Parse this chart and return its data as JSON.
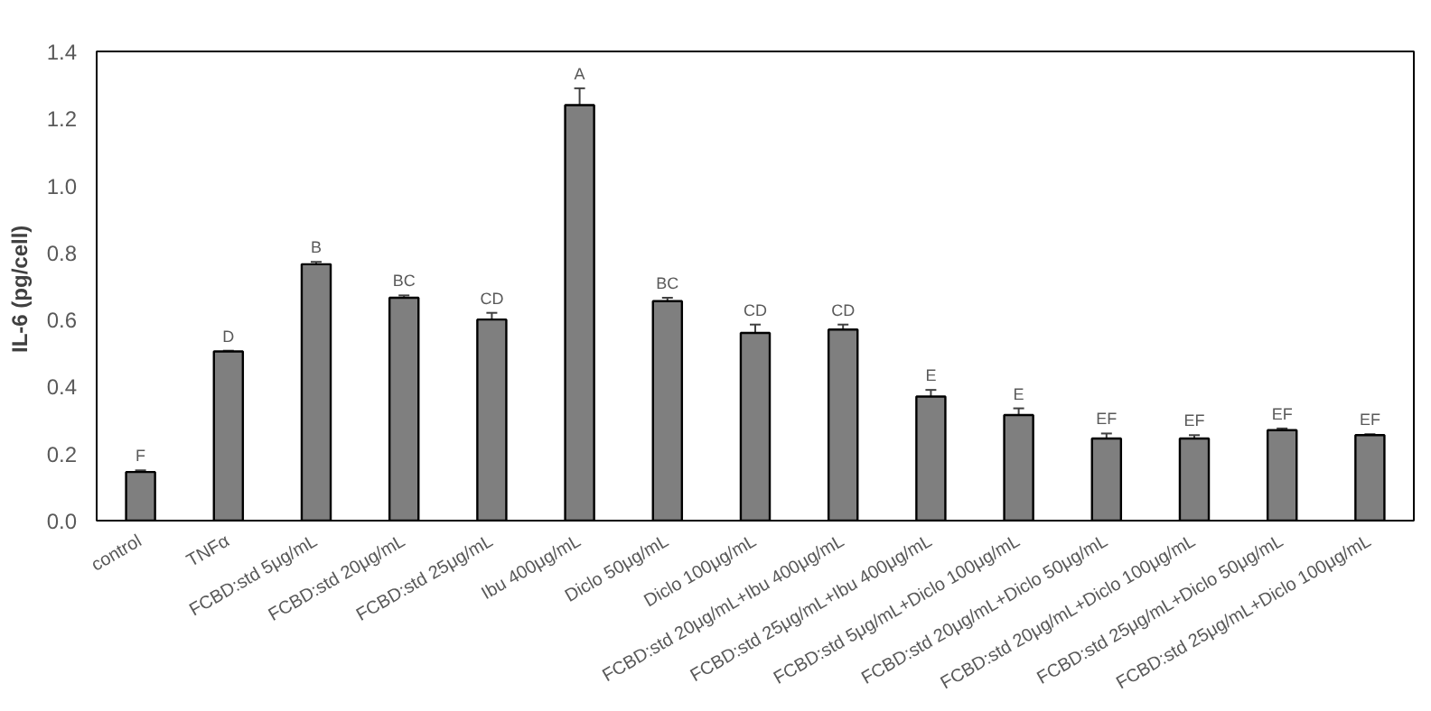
{
  "chart_data": {
    "type": "bar",
    "ylabel": "IL-6  (pg/cell)",
    "categories": [
      "control",
      "TNFα",
      "FCBD:std 5μg/mL",
      "FCBD:std 20μg/mL",
      "FCBD:std 25μg/mL",
      "Ibu 400μg/mL",
      "Diclo 50μg/mL",
      "Diclo 100μg/mL",
      "FCBD:std 20μg/mL+Ibu 400μg/mL",
      "FCBD:std 25μg/mL+Ibu 400μg/mL",
      "FCBD:std 5μg/mL+Diclo 100μg/mL",
      "FCBD:std 20μg/mL+Diclo 50μg/mL",
      "FCBD:std 20μg/mL+Diclo 100μg/mL",
      "FCBD:std 25μg/mL+Diclo 50μg/mL",
      "FCBD:std 25μg/mL+Diclo 100μg/mL"
    ],
    "values": [
      0.145,
      0.505,
      0.765,
      0.665,
      0.6,
      1.24,
      0.655,
      0.56,
      0.57,
      0.37,
      0.315,
      0.245,
      0.245,
      0.27,
      0.255
    ],
    "errors": [
      0.005,
      0.002,
      0.007,
      0.007,
      0.02,
      0.05,
      0.01,
      0.025,
      0.015,
      0.02,
      0.02,
      0.015,
      0.01,
      0.005,
      0.003
    ],
    "color": "#7f7f7f",
    "ylim": [
      0,
      1.4
    ],
    "yticks": [
      {
        "value": 0,
        "label": "0.0"
      },
      {
        "value": 0.2,
        "label": "0.2"
      },
      {
        "value": 0.4,
        "label": "0.4"
      },
      {
        "value": 0.6,
        "label": "0.6"
      },
      {
        "value": 0.8,
        "label": "0.8"
      },
      {
        "value": 1.0,
        "label": "1.0"
      },
      {
        "value": 1.2,
        "label": "1.2"
      },
      {
        "value": 1.4,
        "label": "1.4"
      }
    ],
    "grid": false,
    "annotations": [
      {
        "text": "F",
        "x": "control",
        "y": 0.15
      },
      {
        "text": "D",
        "x": "TNFα",
        "y": 0.507
      },
      {
        "text": "B",
        "x": "FCBD:std 5μg/mL",
        "y": 0.772
      },
      {
        "text": "BC",
        "x": "FCBD:std 20μg/mL",
        "y": 0.672
      },
      {
        "text": "CD",
        "x": "FCBD:std 25μg/mL",
        "y": 0.62
      },
      {
        "text": "A",
        "x": "Ibu 400μg/mL",
        "y": 1.29
      },
      {
        "text": "BC",
        "x": "Diclo 50μg/mL",
        "y": 0.665
      },
      {
        "text": "CD",
        "x": "Diclo 100μg/mL",
        "y": 0.585
      },
      {
        "text": "CD",
        "x": "FCBD:std 20μg/mL+Ibu 400μg/mL",
        "y": 0.585
      },
      {
        "text": "E",
        "x": "FCBD:std 25μg/mL+Ibu 400μg/mL",
        "y": 0.39
      },
      {
        "text": "E",
        "x": "FCBD:std 5μg/mL+Diclo 100μg/mL",
        "y": 0.335
      },
      {
        "text": "EF",
        "x": "FCBD:std 20μg/mL+Diclo 50μg/mL",
        "y": 0.26
      },
      {
        "text": "EF",
        "x": "FCBD:std 20μg/mL+Diclo 100μg/mL",
        "y": 0.255
      },
      {
        "text": "EF",
        "x": "FCBD:std 25μg/mL+Diclo 50μg/mL",
        "y": 0.275
      },
      {
        "text": "EF",
        "x": "FCBD:std 25μg/mL+Diclo 100μg/mL",
        "y": 0.258
      }
    ]
  }
}
